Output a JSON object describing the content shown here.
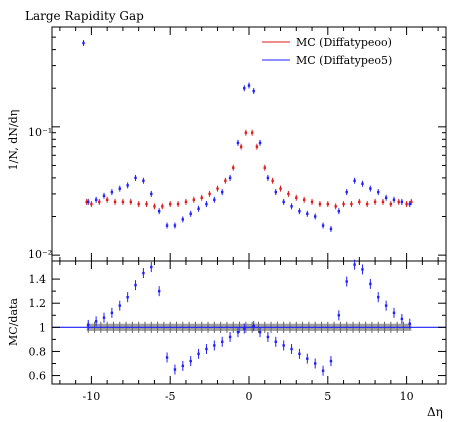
{
  "chart_data": [
    {
      "type": "scatter",
      "title": "Large Rapidity Gap",
      "ylabel": "1/N, dN/dη",
      "xlabel": "",
      "xlim": [
        -12.5,
        12.5
      ],
      "ylim": [
        0.009,
        0.6
      ],
      "yscale": "log",
      "yticks": [
        "10⁻²",
        "10⁻¹"
      ],
      "yticks_values": [
        0.01,
        0.1
      ],
      "legend": {
        "placement": "top-right"
      },
      "series": [
        {
          "name": "MC (Diffatypeoo)",
          "color": "#e31a1c",
          "x": [
            -10.3,
            -10.0,
            -9.5,
            -9.0,
            -8.5,
            -8.0,
            -7.5,
            -7.0,
            -6.5,
            -6.0,
            -5.5,
            -5.0,
            -4.5,
            -4.0,
            -3.5,
            -3.0,
            -2.5,
            -2.0,
            -1.5,
            -1.0,
            -0.5,
            -0.2,
            0.2,
            0.5,
            1.0,
            1.5,
            2.0,
            2.5,
            3.0,
            3.5,
            4.0,
            4.5,
            5.0,
            5.5,
            6.0,
            6.5,
            7.0,
            7.5,
            8.0,
            8.5,
            9.0,
            9.5,
            10.0,
            10.3
          ],
          "y": [
            0.026,
            0.025,
            0.026,
            0.027,
            0.026,
            0.026,
            0.026,
            0.025,
            0.025,
            0.024,
            0.024,
            0.025,
            0.025,
            0.026,
            0.027,
            0.028,
            0.03,
            0.033,
            0.038,
            0.048,
            0.07,
            0.09,
            0.09,
            0.07,
            0.048,
            0.038,
            0.033,
            0.03,
            0.028,
            0.027,
            0.026,
            0.025,
            0.025,
            0.024,
            0.025,
            0.025,
            0.026,
            0.025,
            0.026,
            0.026,
            0.025,
            0.026,
            0.025,
            0.026
          ]
        },
        {
          "name": "MC (Diffatypeo5)",
          "color": "#1f1fff",
          "x": [
            -10.5,
            -10.2,
            -9.7,
            -9.2,
            -8.7,
            -8.2,
            -7.7,
            -7.2,
            -6.7,
            -6.2,
            -5.7,
            -5.2,
            -4.7,
            -4.2,
            -3.7,
            -3.2,
            -2.7,
            -2.2,
            -1.7,
            -1.2,
            -0.7,
            -0.3,
            0.0,
            0.3,
            0.7,
            1.2,
            1.7,
            2.2,
            2.7,
            3.2,
            3.7,
            4.2,
            4.7,
            5.2,
            5.7,
            6.2,
            6.7,
            7.2,
            7.7,
            8.2,
            8.7,
            9.2,
            9.7,
            10.2
          ],
          "y": [
            0.45,
            0.026,
            0.027,
            0.029,
            0.031,
            0.033,
            0.035,
            0.04,
            0.038,
            0.03,
            0.022,
            0.017,
            0.017,
            0.019,
            0.021,
            0.023,
            0.025,
            0.027,
            0.031,
            0.04,
            0.075,
            0.2,
            0.21,
            0.19,
            0.075,
            0.04,
            0.031,
            0.026,
            0.024,
            0.022,
            0.021,
            0.02,
            0.017,
            0.016,
            0.022,
            0.031,
            0.038,
            0.036,
            0.033,
            0.031,
            0.028,
            0.027,
            0.026,
            0.025
          ]
        }
      ]
    },
    {
      "type": "scatter",
      "title": "",
      "ylabel": "MC/data",
      "xlabel": "Δη",
      "xlim": [
        -12.5,
        12.5
      ],
      "ylim": [
        0.53,
        1.55
      ],
      "xticks": [
        -10,
        -5,
        0,
        5,
        10
      ],
      "yticks": [
        0.6,
        0.8,
        1,
        1.2,
        1.4
      ],
      "band": {
        "color": "#808080",
        "low": 0.97,
        "high": 1.03
      },
      "series": [
        {
          "name": "MC (Diffatypeo5)",
          "color": "#1f1fff",
          "x": [
            -10.2,
            -9.7,
            -9.2,
            -8.7,
            -8.2,
            -7.7,
            -7.2,
            -6.7,
            -6.2,
            -5.7,
            -5.2,
            -4.7,
            -4.2,
            -3.7,
            -3.2,
            -2.7,
            -2.2,
            -1.7,
            -1.2,
            -0.7,
            -0.3,
            0.3,
            0.7,
            1.2,
            1.7,
            2.2,
            2.7,
            3.2,
            3.7,
            4.2,
            4.7,
            5.2,
            5.7,
            6.2,
            6.7,
            7.2,
            7.7,
            8.2,
            8.7,
            9.2,
            9.7,
            10.2
          ],
          "y": [
            1.02,
            1.05,
            1.08,
            1.12,
            1.18,
            1.25,
            1.35,
            1.45,
            1.5,
            1.3,
            0.75,
            0.65,
            0.68,
            0.72,
            0.78,
            0.82,
            0.85,
            0.88,
            0.92,
            0.96,
            0.99,
            1.01,
            0.96,
            0.92,
            0.88,
            0.85,
            0.82,
            0.78,
            0.74,
            0.7,
            0.64,
            0.72,
            1.1,
            1.38,
            1.52,
            1.48,
            1.36,
            1.25,
            1.18,
            1.12,
            1.07,
            1.03
          ]
        }
      ]
    }
  ]
}
